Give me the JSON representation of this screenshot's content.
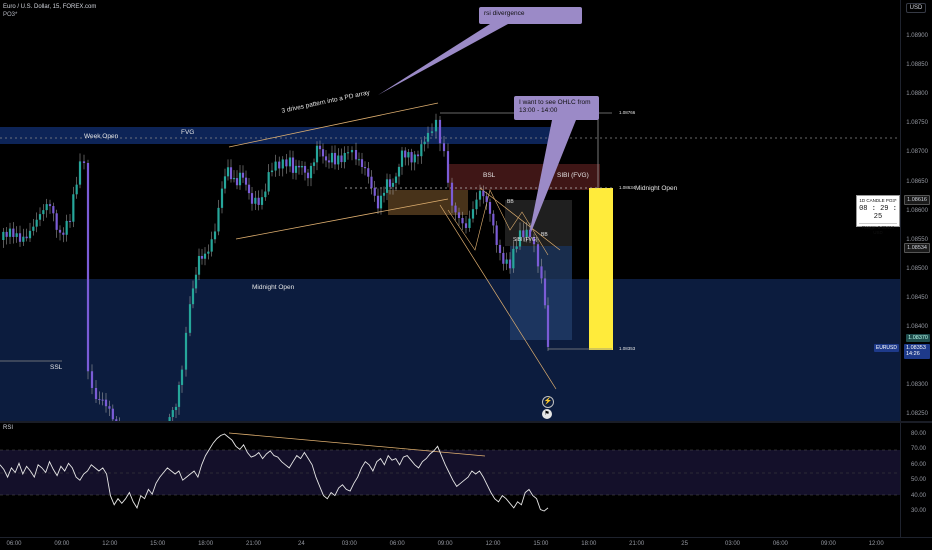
{
  "header": {
    "symbol_line": "Euro / U.S. Dollar, 15, FOREX.com",
    "indicator": "PO3*"
  },
  "currency_button": "USD",
  "price_axis": {
    "ticks": [
      "1.08900",
      "1.08850",
      "1.08800",
      "1.08750",
      "1.08700",
      "1.08650",
      "1.08600",
      "1.08550",
      "1.08500",
      "1.08450",
      "1.08400",
      "1.08350",
      "1.08300",
      "1.08250"
    ]
  },
  "price_tags": {
    "eurusd_label": "EURUSD",
    "close_price": "1.08353",
    "countdown": "14:26",
    "teal_price": "1.08370",
    "mark_price": "1.08534",
    "gray_price": "1.08616"
  },
  "candle_widget": {
    "title": "1D CANDLE PO3*",
    "timer": "08 : 29 : 25",
    "range": "Range: 0.00414 USD"
  },
  "rsi": {
    "label": "RSI",
    "ticks": [
      "80.00",
      "70.00",
      "60.00",
      "50.00",
      "40.00",
      "30.00"
    ],
    "values": [
      60,
      57,
      52,
      58,
      55,
      61,
      54,
      59,
      56,
      52,
      60,
      58,
      55,
      62,
      57,
      53,
      59,
      56,
      61,
      58,
      52,
      50,
      54,
      56,
      60,
      58,
      56,
      58,
      54,
      40,
      34,
      38,
      35,
      38,
      42,
      36,
      32,
      40,
      38,
      44,
      41,
      48,
      52,
      55,
      58,
      56,
      54,
      56,
      50,
      52,
      54,
      56,
      52,
      60,
      66,
      70,
      74,
      77,
      79,
      80,
      78,
      76,
      72,
      70,
      73,
      68,
      65,
      66,
      68,
      64,
      67,
      69,
      66,
      65,
      62,
      60,
      58,
      62,
      66,
      64,
      68,
      64,
      60,
      52,
      46,
      40,
      38,
      42,
      40,
      45,
      47,
      44,
      43,
      48,
      52,
      58,
      62,
      60,
      56,
      62,
      64,
      60,
      66,
      63,
      64,
      60,
      65,
      66,
      63,
      60,
      58,
      62,
      64,
      67,
      69,
      72,
      66,
      60,
      55,
      50,
      46,
      48,
      50,
      52,
      56,
      54,
      56,
      52,
      47,
      42,
      38,
      36,
      40,
      38,
      35,
      32,
      36,
      34,
      42,
      44,
      40,
      38,
      31,
      30,
      32
    ]
  },
  "time_axis": {
    "ticks": [
      "06:00",
      "09:00",
      "12:00",
      "15:00",
      "18:00",
      "21:00",
      "24",
      "03:00",
      "06:00",
      "09:00",
      "12:00",
      "15:00",
      "18:00",
      "21:00",
      "25",
      "03:00",
      "06:00",
      "09:00",
      "12:00"
    ]
  },
  "annotations": {
    "rsi_divergence": "rsi divergence",
    "ohlc_note": "I want to see OHLC from 13:00 - 14:00",
    "three_drives": "3 drives pattern into a PD array",
    "week_open": "Week Open",
    "fvg": "FVG",
    "bsl": "BSL",
    "sibi_fvg": "SIBI (FVG)",
    "midnight_open_right": "Midnight Open",
    "midnight_open": "Midnight Open",
    "ssl": "SSL",
    "bb1": "BB",
    "bb2": "BB",
    "sibi_small": "SIBI (FVG)",
    "level_high": "1.08766",
    "level_mid": "1.08634",
    "level_low": "1.08353"
  },
  "colors": {
    "bull": "#26a69a",
    "bear": "#7b5cd6",
    "wick": "#b0b0b0",
    "accent_yellow": "#ffeb3b",
    "annotation_purple": "#9b8ac7",
    "zone_blue": "#0d1f45",
    "zone_red": "#4a1a1a",
    "zone_orange": "#5a4020"
  }
}
